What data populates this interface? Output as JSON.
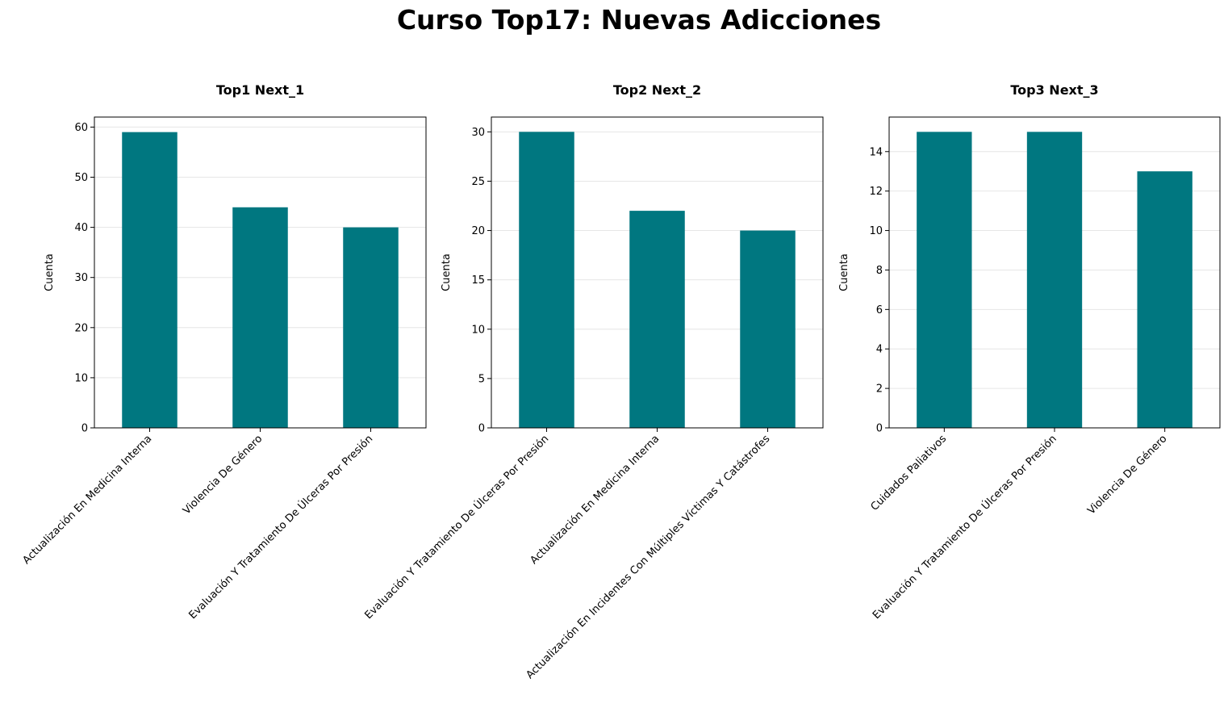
{
  "figure": {
    "title": "Curso Top17: Nuevas Adicciones",
    "bar_color": "#007780"
  },
  "chart_data": [
    {
      "type": "bar",
      "title": "Top1 Next_1",
      "xlabel": "",
      "ylabel": "Cuenta",
      "ylim": [
        0,
        62
      ],
      "yticks": [
        0,
        10,
        20,
        30,
        40,
        50,
        60
      ],
      "grid": "y",
      "categories": [
        "Actualización En Medicina Interna",
        "Violencia De Género",
        "Evaluación Y Tratamiento De Úlceras Por Presión"
      ],
      "values": [
        59,
        44,
        40
      ]
    },
    {
      "type": "bar",
      "title": "Top2 Next_2",
      "xlabel": "",
      "ylabel": "Cuenta",
      "ylim": [
        0,
        31.5
      ],
      "yticks": [
        0,
        5,
        10,
        15,
        20,
        25,
        30
      ],
      "grid": "y",
      "categories": [
        "Evaluación Y Tratamiento De Úlceras Por Presión",
        "Actualización En Medicina Interna",
        "Actualización En Incidentes Con Múltiples Víctimas Y Catástrofes"
      ],
      "values": [
        30,
        22,
        20
      ]
    },
    {
      "type": "bar",
      "title": "Top3 Next_3",
      "xlabel": "",
      "ylabel": "Cuenta",
      "ylim": [
        0,
        15.75
      ],
      "yticks": [
        0,
        2,
        4,
        6,
        8,
        10,
        12,
        14
      ],
      "grid": "y",
      "categories": [
        "Cuidados Paliativos",
        "Evaluación Y Tratamiento De Úlceras Por Presión",
        "Violencia De Género"
      ],
      "values": [
        15,
        15,
        13
      ]
    }
  ]
}
